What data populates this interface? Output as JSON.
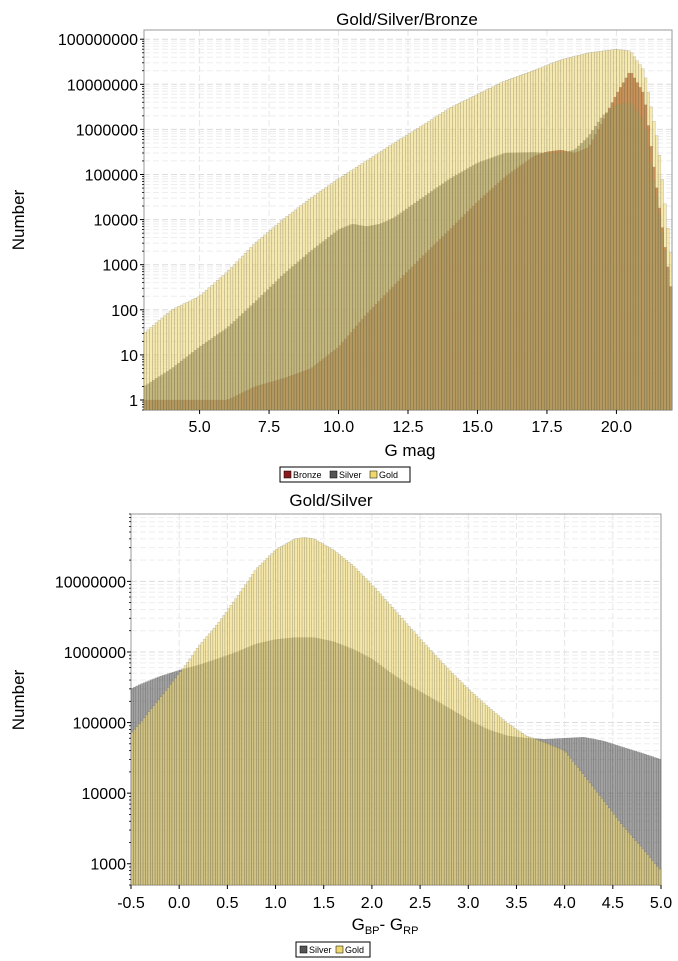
{
  "chart_data": [
    {
      "type": "bar",
      "title": "Gold/Silver/Bronze",
      "xlabel": "G mag",
      "ylabel": "Number",
      "yscale": "log",
      "xlim": [
        3.0,
        22.0
      ],
      "ylim": [
        0.6,
        160000000
      ],
      "xticks": [
        5.0,
        7.5,
        10.0,
        12.5,
        15.0,
        17.5,
        20.0
      ],
      "xtick_labels": [
        "5.0",
        "7.5",
        "10.0",
        "12.5",
        "15.0",
        "17.5",
        "20.0"
      ],
      "yticks": [
        1,
        10,
        100,
        1000,
        10000,
        100000,
        1000000,
        10000000,
        100000000
      ],
      "ytick_labels": [
        "1",
        "10",
        "100",
        "1000",
        "10000",
        "100000",
        "1000000",
        "10000000",
        "100000000"
      ],
      "grid": true,
      "legend_position": "bottom-left",
      "series": [
        {
          "name": "Bronze",
          "color": "#8b1a1a",
          "x": [
            3.5,
            4.0,
            5.0,
            6.0,
            7.0,
            8.0,
            9.0,
            10.0,
            11.0,
            12.0,
            13.0,
            14.0,
            15.0,
            16.0,
            17.0,
            17.5,
            18.0,
            18.5,
            19.0,
            19.5,
            20.0,
            20.5,
            21.0,
            21.5,
            22.0
          ],
          "values": [
            1,
            1,
            1,
            1,
            2,
            3,
            5,
            15,
            80,
            350,
            1500,
            6000,
            25000,
            90000,
            250000,
            320000,
            350000,
            300000,
            400000,
            1500000,
            6000000,
            20000000,
            6000000,
            30000,
            200
          ]
        },
        {
          "name": "Silver",
          "color": "#555555",
          "x": [
            3.0,
            4.0,
            5.0,
            6.0,
            7.0,
            8.0,
            9.0,
            10.0,
            10.5,
            11.0,
            11.5,
            12.0,
            13.0,
            14.0,
            15.0,
            16.0,
            17.0,
            17.5,
            18.0,
            18.5,
            19.0,
            19.5,
            20.0,
            20.5,
            21.0,
            21.5,
            22.0
          ],
          "values": [
            2,
            5,
            15,
            40,
            150,
            600,
            2000,
            6000,
            8000,
            7000,
            8000,
            11000,
            30000,
            80000,
            180000,
            300000,
            310000,
            300000,
            300000,
            350000,
            700000,
            2000000,
            3500000,
            4000000,
            1500000,
            20000,
            200
          ]
        },
        {
          "name": "Gold",
          "color": "#f0d870",
          "x": [
            3.0,
            4.0,
            5.0,
            6.0,
            7.0,
            8.0,
            9.0,
            10.0,
            11.0,
            12.0,
            13.0,
            14.0,
            15.0,
            16.0,
            17.0,
            18.0,
            19.0,
            20.0,
            20.5,
            21.0,
            21.5,
            22.0
          ],
          "values": [
            30,
            100,
            200,
            700,
            3000,
            10000,
            30000,
            80000,
            200000,
            500000,
            1200000,
            3000000,
            6000000,
            12000000,
            20000000,
            35000000,
            50000000,
            60000000,
            55000000,
            20000000,
            500000,
            1000
          ]
        }
      ]
    },
    {
      "type": "bar",
      "title": "Gold/Silver",
      "xlabel": "G",
      "xlabel_sub1": "BP",
      "xlabel_mid": "- G",
      "xlabel_sub2": "RP",
      "ylabel": "Number",
      "yscale": "log",
      "xlim": [
        -0.5,
        5.0
      ],
      "ylim": [
        500,
        90000000
      ],
      "xticks": [
        -0.5,
        0.0,
        0.5,
        1.0,
        1.5,
        2.0,
        2.5,
        3.0,
        3.5,
        4.0,
        4.5,
        5.0
      ],
      "xtick_labels": [
        "-0.5",
        "0.0",
        "0.5",
        "1.0",
        "1.5",
        "2.0",
        "2.5",
        "3.0",
        "3.5",
        "4.0",
        "4.5",
        "5.0"
      ],
      "yticks": [
        1000,
        10000,
        100000,
        1000000,
        10000000
      ],
      "ytick_labels": [
        "1000",
        "10000",
        "100000",
        "1000000",
        "10000000"
      ],
      "grid": true,
      "legend_position": "bottom-left",
      "series": [
        {
          "name": "Silver",
          "color": "#555555",
          "x": [
            -0.5,
            -0.4,
            -0.2,
            0.0,
            0.2,
            0.4,
            0.6,
            0.8,
            1.0,
            1.2,
            1.4,
            1.6,
            1.8,
            2.0,
            2.2,
            2.4,
            2.6,
            2.8,
            3.0,
            3.2,
            3.4,
            3.6,
            3.8,
            4.0,
            4.2,
            4.4,
            4.6,
            4.8,
            5.0
          ],
          "values": [
            300000,
            350000,
            450000,
            550000,
            650000,
            800000,
            1000000,
            1300000,
            1500000,
            1600000,
            1600000,
            1400000,
            1100000,
            800000,
            500000,
            330000,
            230000,
            160000,
            110000,
            80000,
            65000,
            60000,
            58000,
            60000,
            62000,
            55000,
            45000,
            37000,
            30000
          ]
        },
        {
          "name": "Gold",
          "color": "#f0d870",
          "x": [
            -0.5,
            -0.4,
            -0.3,
            -0.2,
            -0.1,
            0.0,
            0.1,
            0.2,
            0.4,
            0.6,
            0.8,
            1.0,
            1.2,
            1.3,
            1.4,
            1.6,
            1.8,
            2.0,
            2.2,
            2.4,
            2.6,
            2.8,
            3.0,
            3.2,
            3.4,
            3.6,
            3.8,
            4.0,
            4.2,
            4.4,
            4.6,
            4.8,
            5.0
          ],
          "values": [
            70000,
            100000,
            150000,
            220000,
            330000,
            500000,
            750000,
            1200000,
            2500000,
            6000000,
            15000000,
            28000000,
            40000000,
            42000000,
            40000000,
            28000000,
            17000000,
            9000000,
            4500000,
            2200000,
            1100000,
            560000,
            300000,
            170000,
            100000,
            65000,
            52000,
            40000,
            18000,
            8000,
            3500,
            1700,
            800
          ]
        }
      ]
    }
  ]
}
